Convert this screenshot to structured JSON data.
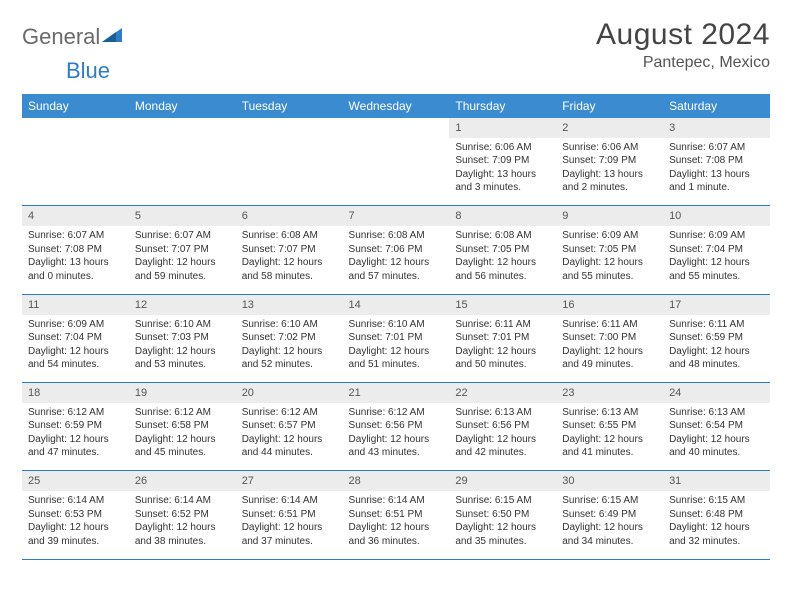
{
  "logo": {
    "part1": "General",
    "part2": "Blue"
  },
  "title": "August 2024",
  "location": "Pantepec, Mexico",
  "colors": {
    "header_bg": "#3b8bd0",
    "header_text": "#ffffff",
    "daynum_bg": "#ececec",
    "row_border": "#2f7dc4",
    "logo_gray": "#6a6a6a",
    "logo_blue": "#2f7dc4"
  },
  "weekdays": [
    "Sunday",
    "Monday",
    "Tuesday",
    "Wednesday",
    "Thursday",
    "Friday",
    "Saturday"
  ],
  "weeks": [
    {
      "nums": [
        "",
        "",
        "",
        "",
        "1",
        "2",
        "3"
      ],
      "cells": [
        "",
        "",
        "",
        "",
        "Sunrise: 6:06 AM\nSunset: 7:09 PM\nDaylight: 13 hours and 3 minutes.",
        "Sunrise: 6:06 AM\nSunset: 7:09 PM\nDaylight: 13 hours and 2 minutes.",
        "Sunrise: 6:07 AM\nSunset: 7:08 PM\nDaylight: 13 hours and 1 minute."
      ]
    },
    {
      "nums": [
        "4",
        "5",
        "6",
        "7",
        "8",
        "9",
        "10"
      ],
      "cells": [
        "Sunrise: 6:07 AM\nSunset: 7:08 PM\nDaylight: 13 hours and 0 minutes.",
        "Sunrise: 6:07 AM\nSunset: 7:07 PM\nDaylight: 12 hours and 59 minutes.",
        "Sunrise: 6:08 AM\nSunset: 7:07 PM\nDaylight: 12 hours and 58 minutes.",
        "Sunrise: 6:08 AM\nSunset: 7:06 PM\nDaylight: 12 hours and 57 minutes.",
        "Sunrise: 6:08 AM\nSunset: 7:05 PM\nDaylight: 12 hours and 56 minutes.",
        "Sunrise: 6:09 AM\nSunset: 7:05 PM\nDaylight: 12 hours and 55 minutes.",
        "Sunrise: 6:09 AM\nSunset: 7:04 PM\nDaylight: 12 hours and 55 minutes."
      ]
    },
    {
      "nums": [
        "11",
        "12",
        "13",
        "14",
        "15",
        "16",
        "17"
      ],
      "cells": [
        "Sunrise: 6:09 AM\nSunset: 7:04 PM\nDaylight: 12 hours and 54 minutes.",
        "Sunrise: 6:10 AM\nSunset: 7:03 PM\nDaylight: 12 hours and 53 minutes.",
        "Sunrise: 6:10 AM\nSunset: 7:02 PM\nDaylight: 12 hours and 52 minutes.",
        "Sunrise: 6:10 AM\nSunset: 7:01 PM\nDaylight: 12 hours and 51 minutes.",
        "Sunrise: 6:11 AM\nSunset: 7:01 PM\nDaylight: 12 hours and 50 minutes.",
        "Sunrise: 6:11 AM\nSunset: 7:00 PM\nDaylight: 12 hours and 49 minutes.",
        "Sunrise: 6:11 AM\nSunset: 6:59 PM\nDaylight: 12 hours and 48 minutes."
      ]
    },
    {
      "nums": [
        "18",
        "19",
        "20",
        "21",
        "22",
        "23",
        "24"
      ],
      "cells": [
        "Sunrise: 6:12 AM\nSunset: 6:59 PM\nDaylight: 12 hours and 47 minutes.",
        "Sunrise: 6:12 AM\nSunset: 6:58 PM\nDaylight: 12 hours and 45 minutes.",
        "Sunrise: 6:12 AM\nSunset: 6:57 PM\nDaylight: 12 hours and 44 minutes.",
        "Sunrise: 6:12 AM\nSunset: 6:56 PM\nDaylight: 12 hours and 43 minutes.",
        "Sunrise: 6:13 AM\nSunset: 6:56 PM\nDaylight: 12 hours and 42 minutes.",
        "Sunrise: 6:13 AM\nSunset: 6:55 PM\nDaylight: 12 hours and 41 minutes.",
        "Sunrise: 6:13 AM\nSunset: 6:54 PM\nDaylight: 12 hours and 40 minutes."
      ]
    },
    {
      "nums": [
        "25",
        "26",
        "27",
        "28",
        "29",
        "30",
        "31"
      ],
      "cells": [
        "Sunrise: 6:14 AM\nSunset: 6:53 PM\nDaylight: 12 hours and 39 minutes.",
        "Sunrise: 6:14 AM\nSunset: 6:52 PM\nDaylight: 12 hours and 38 minutes.",
        "Sunrise: 6:14 AM\nSunset: 6:51 PM\nDaylight: 12 hours and 37 minutes.",
        "Sunrise: 6:14 AM\nSunset: 6:51 PM\nDaylight: 12 hours and 36 minutes.",
        "Sunrise: 6:15 AM\nSunset: 6:50 PM\nDaylight: 12 hours and 35 minutes.",
        "Sunrise: 6:15 AM\nSunset: 6:49 PM\nDaylight: 12 hours and 34 minutes.",
        "Sunrise: 6:15 AM\nSunset: 6:48 PM\nDaylight: 12 hours and 32 minutes."
      ]
    }
  ]
}
